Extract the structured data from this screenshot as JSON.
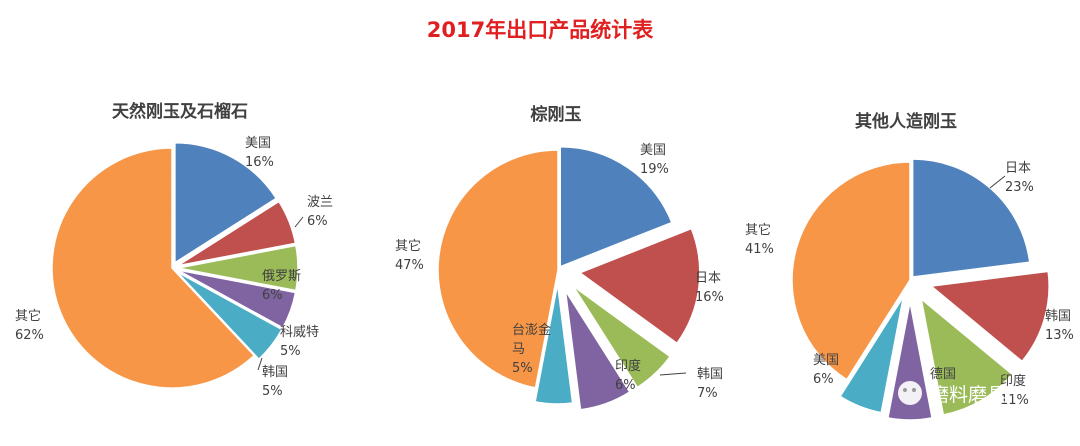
{
  "title": "2017年出口产品统计表",
  "watermark": {
    "text": "磨料磨具",
    "icon": "wechat-icon"
  },
  "chart_data": [
    {
      "type": "pie",
      "title": "天然刚玉及石榴石",
      "unit": "%",
      "series": [
        {
          "name": "美国",
          "value": 16,
          "color": "#4f81bd",
          "label": [
            "美国",
            "16%"
          ]
        },
        {
          "name": "波兰",
          "value": 6,
          "color": "#c0504d",
          "label": [
            "波兰",
            "6%"
          ]
        },
        {
          "name": "俄罗斯",
          "value": 6,
          "color": "#9bbb59",
          "label": [
            "俄罗斯",
            "6%"
          ]
        },
        {
          "name": "科威特",
          "value": 5,
          "color": "#8064a2",
          "label": [
            "科威特",
            "5%"
          ]
        },
        {
          "name": "韩国",
          "value": 5,
          "color": "#4bacc6",
          "label": [
            "韩国",
            "5%"
          ]
        },
        {
          "name": "其它",
          "value": 62,
          "color": "#f79646",
          "label": [
            "其它",
            "62%"
          ]
        }
      ]
    },
    {
      "type": "pie",
      "title": "棕刚玉",
      "unit": "%",
      "series": [
        {
          "name": "美国",
          "value": 19,
          "color": "#4f81bd",
          "label": [
            "美国",
            "19%"
          ]
        },
        {
          "name": "日本",
          "value": 16,
          "color": "#c0504d",
          "label": [
            "日本",
            "16%"
          ]
        },
        {
          "name": "印度",
          "value": 6,
          "color": "#9bbb59",
          "label": [
            "印度",
            "6%"
          ]
        },
        {
          "name": "韩国",
          "value": 7,
          "color": "#8064a2",
          "label": [
            "韩国",
            "7%"
          ]
        },
        {
          "name": "台澎金马",
          "value": 5,
          "color": "#4bacc6",
          "label": [
            "台澎金",
            "马",
            "5%"
          ]
        },
        {
          "name": "其它",
          "value": 47,
          "color": "#f79646",
          "label": [
            "其它",
            "47%"
          ]
        }
      ]
    },
    {
      "type": "pie",
      "title": "其他人造刚玉",
      "unit": "%",
      "series": [
        {
          "name": "日本",
          "value": 23,
          "color": "#4f81bd",
          "label": [
            "日本",
            "23%"
          ]
        },
        {
          "name": "韩国",
          "value": 13,
          "color": "#c0504d",
          "label": [
            "韩国",
            "13%"
          ]
        },
        {
          "name": "印度",
          "value": 11,
          "color": "#9bbb59",
          "label": [
            "印度",
            "11%"
          ]
        },
        {
          "name": "德国",
          "value": 6,
          "color": "#8064a2",
          "label": [
            "德国"
          ]
        },
        {
          "name": "美国",
          "value": 6,
          "color": "#4bacc6",
          "label": [
            "美国",
            "6%"
          ]
        },
        {
          "name": "其它",
          "value": 41,
          "color": "#f79646",
          "label": [
            "其它",
            "41%"
          ]
        }
      ]
    }
  ]
}
